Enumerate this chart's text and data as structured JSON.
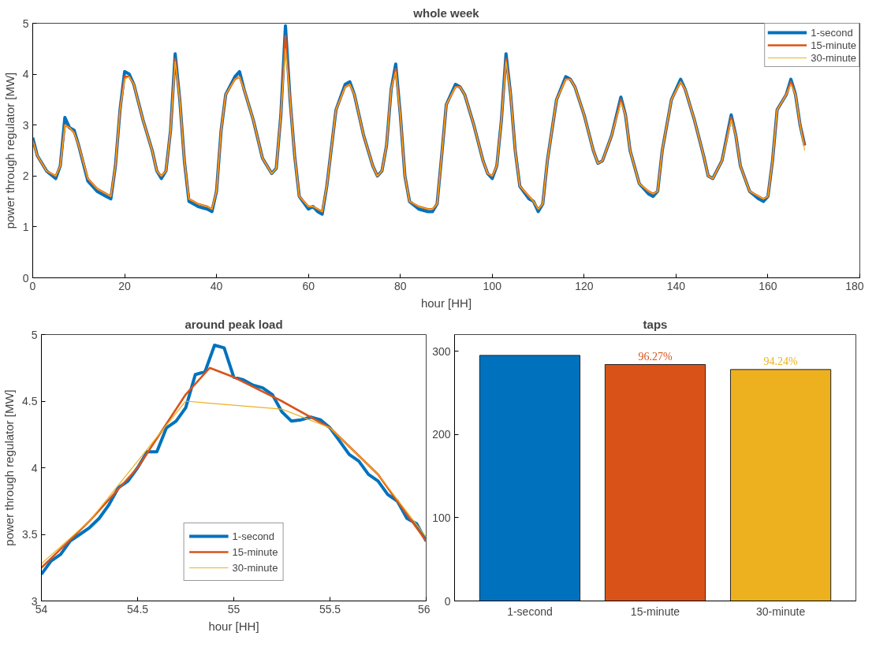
{
  "chart_data": [
    {
      "type": "line",
      "title": "whole week",
      "xlabel": "hour [HH]",
      "ylabel": "power through regulator [MW]",
      "xlim": [
        0,
        180
      ],
      "ylim": [
        0,
        5
      ],
      "xticks": [
        0,
        20,
        40,
        60,
        80,
        100,
        120,
        140,
        160,
        180
      ],
      "yticks": [
        0,
        1,
        2,
        3,
        4,
        5
      ],
      "grid": false,
      "legend": "top right",
      "x": [
        0,
        1,
        3,
        5,
        6,
        7,
        8,
        9,
        10,
        12,
        14,
        16,
        17,
        18,
        19,
        20,
        21,
        22,
        24,
        26,
        27,
        28,
        29,
        30,
        31,
        32,
        33,
        34,
        36,
        38,
        39,
        40,
        41,
        42,
        44,
        45,
        46,
        48,
        50,
        52,
        53,
        54,
        55,
        56,
        57,
        58,
        60,
        61,
        62,
        63,
        64,
        66,
        68,
        69,
        70,
        72,
        74,
        75,
        76,
        77,
        78,
        79,
        80,
        81,
        82,
        84,
        86,
        87,
        88,
        89,
        90,
        92,
        93,
        94,
        96,
        98,
        99,
        100,
        101,
        102,
        103,
        104,
        105,
        106,
        108,
        109,
        110,
        111,
        112,
        114,
        116,
        117,
        118,
        120,
        122,
        123,
        124,
        126,
        128,
        129,
        130,
        132,
        134,
        135,
        136,
        137,
        139,
        141,
        142,
        144,
        146,
        147,
        148,
        150,
        152,
        153,
        154,
        156,
        158,
        159,
        160,
        161,
        162,
        164,
        165,
        166,
        167,
        168
      ],
      "series": [
        {
          "name": "1-second",
          "color": "#0072bd",
          "values": [
            2.75,
            2.4,
            2.1,
            1.95,
            2.2,
            3.15,
            2.95,
            2.9,
            2.6,
            1.9,
            1.7,
            1.6,
            1.55,
            2.2,
            3.3,
            4.05,
            4.0,
            3.8,
            3.1,
            2.5,
            2.1,
            1.95,
            2.1,
            2.9,
            4.4,
            3.5,
            2.3,
            1.5,
            1.4,
            1.35,
            1.3,
            1.7,
            2.9,
            3.6,
            3.95,
            4.05,
            3.7,
            3.1,
            2.35,
            2.05,
            2.15,
            3.2,
            4.95,
            3.5,
            2.4,
            1.6,
            1.35,
            1.4,
            1.3,
            1.25,
            1.8,
            3.3,
            3.8,
            3.85,
            3.6,
            2.8,
            2.2,
            2.0,
            2.1,
            2.6,
            3.7,
            4.2,
            3.2,
            2.0,
            1.5,
            1.35,
            1.3,
            1.3,
            1.45,
            2.4,
            3.4,
            3.8,
            3.75,
            3.6,
            3.0,
            2.3,
            2.05,
            1.95,
            2.2,
            3.1,
            4.4,
            3.6,
            2.5,
            1.8,
            1.55,
            1.5,
            1.3,
            1.45,
            2.3,
            3.5,
            3.95,
            3.9,
            3.75,
            3.2,
            2.5,
            2.25,
            2.3,
            2.8,
            3.55,
            3.2,
            2.5,
            1.85,
            1.65,
            1.6,
            1.7,
            2.5,
            3.5,
            3.9,
            3.7,
            3.1,
            2.4,
            2.0,
            1.95,
            2.3,
            3.2,
            2.8,
            2.2,
            1.7,
            1.55,
            1.5,
            1.6,
            2.3,
            3.3,
            3.6,
            3.9,
            3.6,
            3.0,
            2.6
          ]
        },
        {
          "name": "15-minute",
          "color": "#d95319",
          "values": [
            2.7,
            2.4,
            2.1,
            2.0,
            2.2,
            3.0,
            2.95,
            2.85,
            2.6,
            1.95,
            1.75,
            1.65,
            1.6,
            2.2,
            3.3,
            3.95,
            3.95,
            3.8,
            3.1,
            2.5,
            2.1,
            2.0,
            2.1,
            2.9,
            4.3,
            3.5,
            2.3,
            1.55,
            1.45,
            1.4,
            1.35,
            1.7,
            2.9,
            3.6,
            3.9,
            3.95,
            3.7,
            3.1,
            2.35,
            2.05,
            2.15,
            3.2,
            4.75,
            3.5,
            2.4,
            1.6,
            1.4,
            1.4,
            1.35,
            1.3,
            1.8,
            3.3,
            3.75,
            3.8,
            3.6,
            2.8,
            2.2,
            2.0,
            2.1,
            2.6,
            3.7,
            4.1,
            3.2,
            2.0,
            1.5,
            1.4,
            1.35,
            1.35,
            1.45,
            2.4,
            3.4,
            3.75,
            3.75,
            3.6,
            3.0,
            2.3,
            2.05,
            2.0,
            2.2,
            3.1,
            4.3,
            3.6,
            2.5,
            1.8,
            1.6,
            1.5,
            1.35,
            1.45,
            2.3,
            3.5,
            3.9,
            3.9,
            3.75,
            3.2,
            2.5,
            2.25,
            2.3,
            2.8,
            3.5,
            3.2,
            2.5,
            1.85,
            1.7,
            1.65,
            1.7,
            2.5,
            3.5,
            3.85,
            3.7,
            3.1,
            2.4,
            2.0,
            1.95,
            2.3,
            3.15,
            2.8,
            2.2,
            1.7,
            1.6,
            1.55,
            1.6,
            2.3,
            3.3,
            3.6,
            3.85,
            3.6,
            3.0,
            2.6
          ]
        },
        {
          "name": "30-minute",
          "color": "#edb120",
          "values": [
            2.7,
            2.4,
            2.1,
            2.0,
            2.2,
            3.0,
            2.95,
            2.85,
            2.6,
            1.95,
            1.75,
            1.65,
            1.6,
            2.2,
            3.3,
            3.9,
            3.95,
            3.8,
            3.1,
            2.5,
            2.1,
            2.0,
            2.1,
            2.9,
            4.25,
            3.5,
            2.3,
            1.55,
            1.45,
            1.4,
            1.35,
            1.7,
            2.9,
            3.6,
            3.9,
            3.95,
            3.7,
            3.1,
            2.35,
            2.05,
            2.15,
            3.2,
            4.5,
            3.5,
            2.4,
            1.6,
            1.4,
            1.4,
            1.35,
            1.3,
            1.8,
            3.3,
            3.75,
            3.8,
            3.6,
            2.8,
            2.2,
            2.0,
            2.1,
            2.6,
            3.7,
            4.05,
            3.2,
            2.0,
            1.5,
            1.4,
            1.35,
            1.35,
            1.45,
            2.4,
            3.4,
            3.75,
            3.75,
            3.6,
            3.0,
            2.3,
            2.05,
            2.0,
            2.2,
            3.1,
            4.25,
            3.6,
            2.5,
            1.8,
            1.6,
            1.5,
            1.35,
            1.45,
            2.3,
            3.5,
            3.9,
            3.9,
            3.75,
            3.2,
            2.5,
            2.25,
            2.3,
            2.8,
            3.45,
            3.2,
            2.5,
            1.85,
            1.7,
            1.65,
            1.7,
            2.5,
            3.5,
            3.85,
            3.7,
            3.1,
            2.4,
            2.0,
            1.95,
            2.3,
            3.1,
            2.8,
            2.2,
            1.7,
            1.6,
            1.55,
            1.6,
            2.3,
            3.3,
            3.6,
            3.8,
            3.6,
            3.0,
            2.5
          ]
        }
      ]
    },
    {
      "type": "line",
      "title": "around peak load",
      "xlabel": "hour [HH]",
      "ylabel": "power through regulator [MW]",
      "xlim": [
        54,
        56
      ],
      "ylim": [
        3,
        5
      ],
      "xticks": [
        54,
        54.5,
        55,
        55.5,
        56
      ],
      "yticks": [
        3,
        3.5,
        4,
        4.5,
        5
      ],
      "grid": false,
      "legend": "bottom",
      "series": [
        {
          "name": "1-second",
          "color": "#0072bd",
          "x": [
            54,
            54.05,
            54.1,
            54.15,
            54.2,
            54.25,
            54.3,
            54.35,
            54.4,
            54.45,
            54.5,
            54.55,
            54.6,
            54.65,
            54.7,
            54.75,
            54.8,
            54.85,
            54.9,
            54.95,
            55,
            55.05,
            55.1,
            55.15,
            55.2,
            55.25,
            55.3,
            55.35,
            55.4,
            55.45,
            55.5,
            55.55,
            55.6,
            55.65,
            55.7,
            55.75,
            55.8,
            55.85,
            55.9,
            55.95,
            56
          ],
          "values": [
            3.2,
            3.3,
            3.35,
            3.45,
            3.5,
            3.55,
            3.62,
            3.72,
            3.85,
            3.9,
            4.0,
            4.12,
            4.12,
            4.3,
            4.35,
            4.45,
            4.7,
            4.72,
            4.92,
            4.9,
            4.68,
            4.66,
            4.62,
            4.6,
            4.55,
            4.42,
            4.35,
            4.36,
            4.38,
            4.36,
            4.3,
            4.2,
            4.1,
            4.05,
            3.95,
            3.9,
            3.8,
            3.75,
            3.62,
            3.58,
            3.45
          ]
        },
        {
          "name": "15-minute",
          "color": "#d95319",
          "x": [
            54,
            54.25,
            54.5,
            54.75,
            54.875,
            55,
            55.25,
            55.5,
            55.75,
            56
          ],
          "values": [
            3.25,
            3.6,
            4.0,
            4.55,
            4.75,
            4.68,
            4.5,
            4.3,
            3.95,
            3.45
          ]
        },
        {
          "name": "30-minute",
          "color": "#edb120",
          "x": [
            54,
            54.25,
            54.5,
            54.75,
            55.25,
            55.5,
            55.75,
            56
          ],
          "values": [
            3.28,
            3.6,
            4.05,
            4.5,
            4.44,
            4.3,
            3.95,
            3.48
          ]
        }
      ]
    },
    {
      "type": "bar",
      "title": "taps",
      "categories": [
        "1-second",
        "15-minute",
        "30-minute"
      ],
      "values": [
        295,
        284,
        278
      ],
      "colors": [
        "#0072bd",
        "#d95319",
        "#edb120"
      ],
      "ylim": [
        0,
        320
      ],
      "yticks": [
        0,
        100,
        200,
        300
      ],
      "grid": false,
      "annotations": [
        {
          "text": "96.27%",
          "x": "15-minute",
          "y": 284
        },
        {
          "text": "94.24%",
          "x": "30-minute",
          "y": 278
        }
      ]
    }
  ]
}
